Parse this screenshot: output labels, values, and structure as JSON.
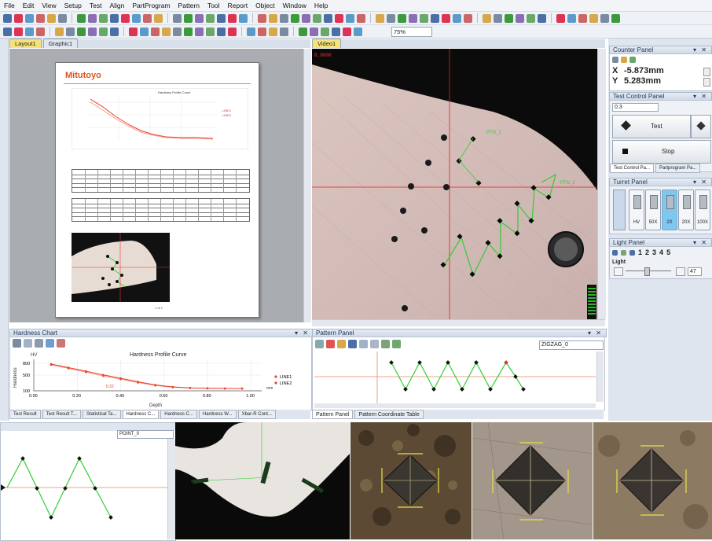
{
  "menu": [
    "File",
    "Edit",
    "View",
    "Setup",
    "Test",
    "Align",
    "PartProgram",
    "Pattern",
    "Tool",
    "Report",
    "Object",
    "Window",
    "Help"
  ],
  "toolbar": {
    "zoom_value": "75%"
  },
  "layout_tabs": [
    "Layout1",
    "Graphic1"
  ],
  "report": {
    "brand": "Mitutoyo",
    "brand_color": "#e0521c",
    "mini_chart_title": "Hardness Profile Curve",
    "mini_legend": [
      "LINE1",
      "LINE2"
    ],
    "page_number": "1 of 1"
  },
  "video": {
    "tab": "Video1",
    "readout": "0.0000",
    "labels": [
      "PTN_1",
      "PTN_2"
    ]
  },
  "counter_panel": {
    "title": "Counter Panel",
    "x_label": "X",
    "x_value": "-5.873mm",
    "y_label": "Y",
    "y_value": "5.283mm"
  },
  "test_control": {
    "title": "Test Control Panel",
    "select_value": "0.3",
    "test_label": "Test",
    "stop_label": "Stop",
    "tabs": [
      "Test Control Pa...",
      "Partprogram Pa..."
    ]
  },
  "turret": {
    "title": "Turret Panel",
    "items": [
      "HV",
      "50X",
      "2X",
      "20X",
      "100X"
    ]
  },
  "light": {
    "title": "Light Panel",
    "numbers": [
      "1",
      "2",
      "3",
      "4",
      "5"
    ],
    "label": "Light",
    "value": "47"
  },
  "hardness_chart": {
    "title": "Hardness Chart",
    "tabs": [
      "Test Result",
      "Test Result T...",
      "Statistical Ta...",
      "Hardness C...",
      "Hardness C...",
      "Hardness W...",
      "Xbar-R Cont..."
    ]
  },
  "pattern_panel": {
    "title": "Pattern Panel",
    "select_value": "ZIGZAG_0",
    "tabs": [
      "Pattern Panel",
      "Pattern Coordinate Table"
    ]
  },
  "bottom_left": {
    "select_value": "POINT_0"
  },
  "chart_data": {
    "type": "line",
    "title": "Hardness Profile Curve",
    "xlabel": "Depth",
    "ylabel": "Hardness",
    "unit_y": "HV",
    "unit_x": "mm",
    "x_ticks": [
      "0.00",
      "0.20",
      "0.40",
      "0.60",
      "0.80",
      "1.00"
    ],
    "y_ticks": [
      "100",
      "500",
      "800"
    ],
    "xlim": [
      0,
      1.05
    ],
    "ylim": [
      100,
      900
    ],
    "annotation": "0.32",
    "legend": "right",
    "series": [
      {
        "name": "LINE1",
        "color": "#e8402a",
        "x": [
          0.08,
          0.16,
          0.24,
          0.32,
          0.4,
          0.48,
          0.56,
          0.64,
          0.72,
          0.8,
          0.88,
          0.96
        ],
        "y": [
          780,
          690,
          600,
          505,
          420,
          330,
          250,
          200,
          175,
          165,
          160,
          158
        ]
      },
      {
        "name": "LINE2",
        "color": "#e8402a",
        "x": [
          0.08,
          0.16,
          0.24,
          0.32,
          0.4,
          0.48,
          0.56,
          0.64,
          0.72,
          0.8,
          0.88,
          0.96
        ],
        "y": [
          760,
          670,
          575,
          480,
          395,
          310,
          235,
          190,
          170,
          162,
          158,
          156
        ]
      }
    ]
  }
}
